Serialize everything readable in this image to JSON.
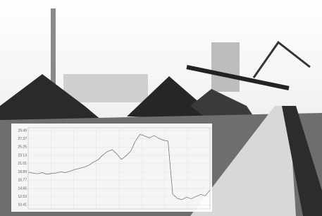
{
  "chart_data": {
    "type": "line",
    "values": [
      18.8,
      18.6,
      18.4,
      18.7,
      18.3,
      18.5,
      18.6,
      18.9,
      18.7,
      19.1,
      19.5,
      19.8,
      20.1,
      20.6,
      21.4,
      22.0,
      23.2,
      24.1,
      24.6,
      23.5,
      22.1,
      23.0,
      24.2,
      26.8,
      28.5,
      28.1,
      27.6,
      28.2,
      27.5,
      27.0,
      26.8,
      13.2,
      12.1,
      11.8,
      12.4,
      12.0,
      12.6,
      13.1,
      12.8,
      14.2
    ],
    "color": "#777777",
    "ylim": [
      9.4,
      30.2
    ],
    "yticks": [
      10.41,
      12.53,
      14.65,
      16.77,
      18.89,
      21.01,
      23.13,
      25.25,
      27.37,
      29.49
    ],
    "grid": true
  }
}
